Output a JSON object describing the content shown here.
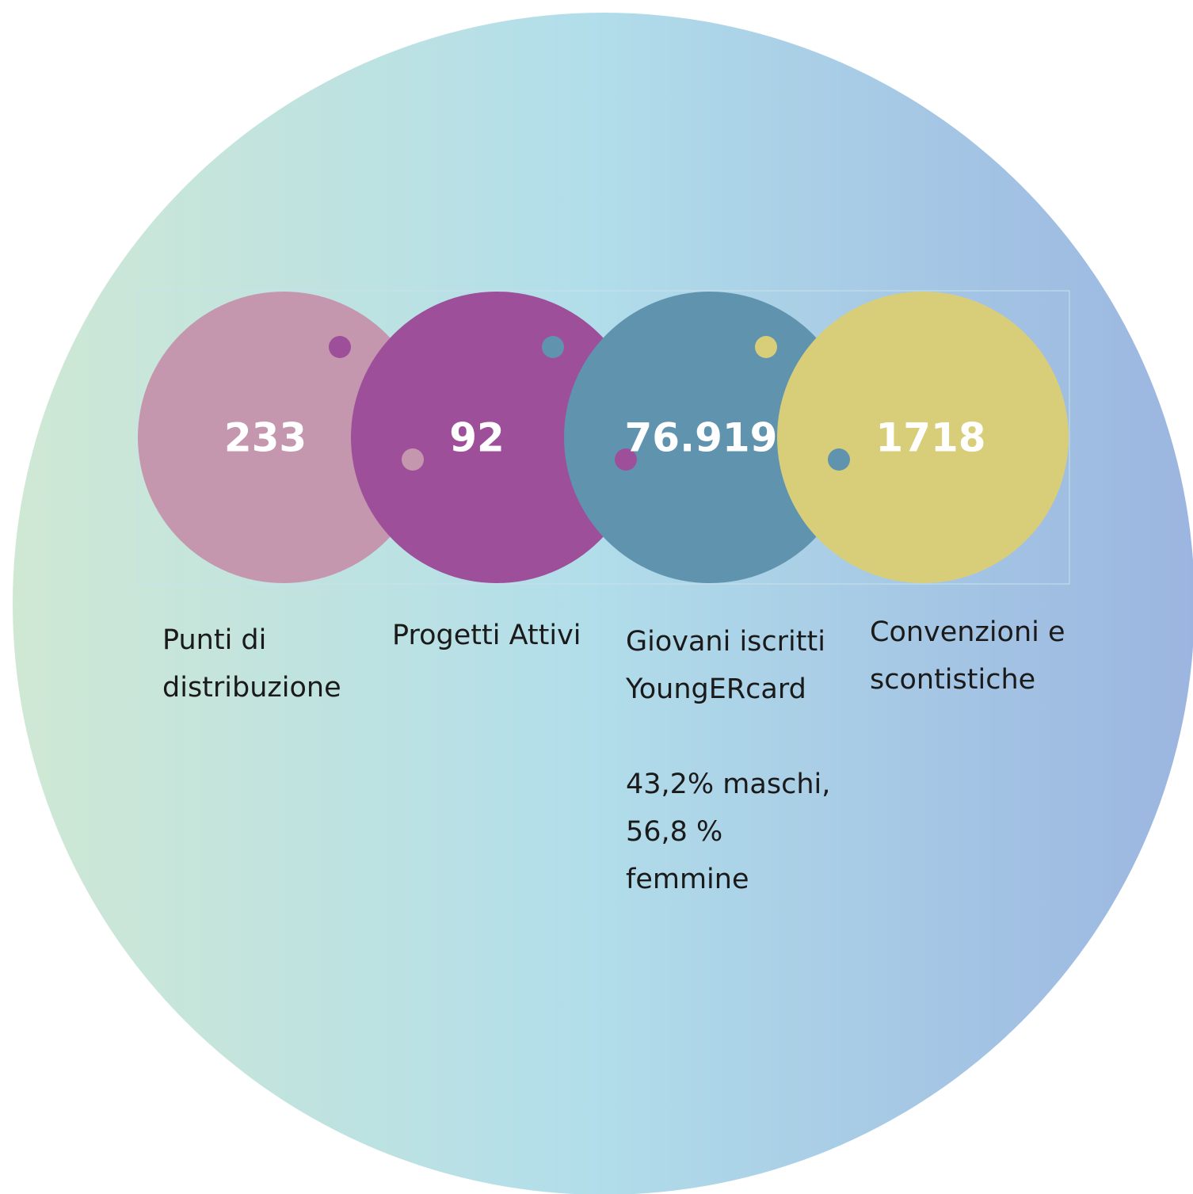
{
  "items": [
    {
      "value": "233",
      "label": [
        "Punti di",
        "distribuzione"
      ]
    },
    {
      "value": "92",
      "label": [
        "Progetti Attivi"
      ]
    },
    {
      "value": "76.919",
      "label": [
        "Giovani iscritti",
        "YoungERcard"
      ],
      "note": [
        "43,2% maschi,",
        "56,8 %",
        "femmine"
      ]
    },
    {
      "value": "1718",
      "label": [
        "Convenzioni e",
        "scontistiche"
      ]
    }
  ]
}
